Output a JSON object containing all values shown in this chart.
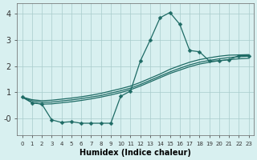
{
  "xlabel": "Humidex (Indice chaleur)",
  "background_color": "#d8f0f0",
  "grid_color": "#a8cccc",
  "line_color": "#1e6b65",
  "xlim": [
    -0.5,
    23.5
  ],
  "ylim": [
    -0.65,
    4.4
  ],
  "xticks": [
    0,
    1,
    2,
    3,
    4,
    5,
    6,
    7,
    8,
    9,
    10,
    11,
    12,
    13,
    14,
    15,
    16,
    17,
    18,
    19,
    20,
    21,
    22,
    23
  ],
  "yticks": [
    0,
    1,
    2,
    3,
    4
  ],
  "ytick_labels": [
    "-0",
    "1",
    "2",
    "3",
    "4"
  ],
  "line1_x": [
    0,
    1,
    2,
    3,
    4,
    5,
    6,
    7,
    8,
    9,
    10,
    11,
    12,
    13,
    14,
    15,
    16,
    17,
    18,
    19,
    20,
    21,
    22,
    23
  ],
  "line1_y": [
    0.82,
    0.72,
    0.68,
    0.7,
    0.74,
    0.78,
    0.83,
    0.89,
    0.96,
    1.05,
    1.14,
    1.24,
    1.38,
    1.54,
    1.7,
    1.88,
    2.02,
    2.15,
    2.25,
    2.32,
    2.38,
    2.42,
    2.43,
    2.44
  ],
  "line2_x": [
    0,
    1,
    2,
    3,
    4,
    5,
    6,
    7,
    8,
    9,
    10,
    11,
    12,
    13,
    14,
    15,
    16,
    17,
    18,
    19,
    20,
    21,
    22,
    23
  ],
  "line2_y": [
    0.82,
    0.68,
    0.62,
    0.63,
    0.67,
    0.71,
    0.76,
    0.82,
    0.88,
    0.97,
    1.06,
    1.16,
    1.3,
    1.46,
    1.62,
    1.78,
    1.92,
    2.05,
    2.15,
    2.22,
    2.28,
    2.33,
    2.36,
    2.38
  ],
  "line3_x": [
    0,
    1,
    2,
    3,
    4,
    5,
    6,
    7,
    8,
    9,
    10,
    11,
    12,
    13,
    14,
    15,
    16,
    17,
    18,
    19,
    20,
    21,
    22,
    23
  ],
  "line3_y": [
    0.82,
    0.62,
    0.55,
    0.56,
    0.6,
    0.64,
    0.69,
    0.75,
    0.82,
    0.9,
    0.99,
    1.1,
    1.24,
    1.4,
    1.56,
    1.72,
    1.85,
    1.98,
    2.08,
    2.15,
    2.21,
    2.25,
    2.28,
    2.3
  ],
  "line4_x": [
    0,
    1,
    2,
    3,
    4,
    5,
    6,
    7,
    8,
    9,
    10,
    11,
    12,
    13,
    14,
    15,
    16,
    17,
    18,
    19,
    20,
    21,
    22,
    23
  ],
  "line4_y": [
    0.82,
    0.6,
    0.55,
    -0.05,
    -0.15,
    -0.12,
    -0.18,
    -0.18,
    -0.18,
    -0.18,
    0.85,
    1.05,
    2.2,
    3.0,
    3.85,
    4.05,
    3.6,
    2.6,
    2.55,
    2.2,
    2.2,
    2.25,
    2.4,
    2.4
  ],
  "markersize": 2.5
}
